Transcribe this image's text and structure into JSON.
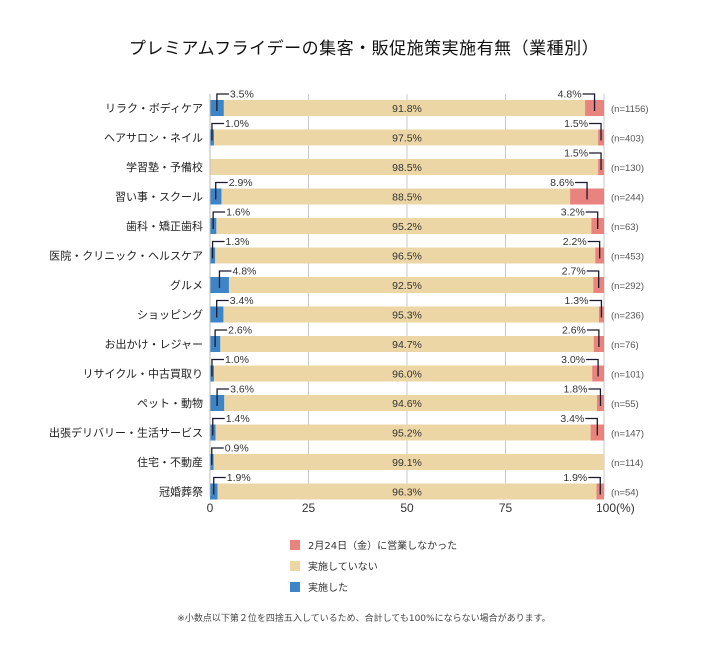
{
  "title": "プレミアムフライデーの集客・販促施策実施有無（業種別）",
  "chart_data": {
    "type": "bar",
    "orientation": "horizontal",
    "stacked": true,
    "title": "プレミアムフライデーの集客・販促施策実施有無（業種別）",
    "xlabel": "",
    "ylabel": "",
    "xlim": [
      0,
      100
    ],
    "x_ticks": [
      "0",
      "25",
      "50",
      "75",
      "100(%)"
    ],
    "x_tick_values": [
      0,
      25,
      50,
      75,
      100
    ],
    "grid": true,
    "legend_position": "bottom",
    "categories": [
      "リラク・ボディケア",
      "ヘアサロン・ネイル",
      "学習塾・予備校",
      "習い事・スクール",
      "歯科・矯正歯科",
      "医院・クリニック・ヘルスケア",
      "グルメ",
      "ショッピング",
      "お出かけ・レジャー",
      "リサイクル・中古買取り",
      "ペット・動物",
      "出張デリバリー・生活サービス",
      "住宅・不動産",
      "冠婚葬祭"
    ],
    "sample_sizes": [
      "(n=1156)",
      "(n=403)",
      "(n=130)",
      "(n=244)",
      "(n=63)",
      "(n=453)",
      "(n=292)",
      "(n=236)",
      "(n=76)",
      "(n=101)",
      "(n=55)",
      "(n=147)",
      "(n=114)",
      "(n=54)"
    ],
    "series": [
      {
        "name": "実施した",
        "color": "#3d85c6",
        "values": [
          3.5,
          1.0,
          0,
          2.9,
          1.6,
          1.3,
          4.8,
          3.4,
          2.6,
          1.0,
          3.6,
          1.4,
          0.9,
          1.9
        ],
        "labels": [
          "3.5%",
          "1.0%",
          "",
          "2.9%",
          "1.6%",
          "1.3%",
          "4.8%",
          "3.4%",
          "2.6%",
          "1.0%",
          "3.6%",
          "1.4%",
          "0.9%",
          "1.9%"
        ]
      },
      {
        "name": "実施していない",
        "color": "#ecd6a6",
        "values": [
          91.8,
          97.5,
          98.5,
          88.5,
          95.2,
          96.5,
          92.5,
          95.3,
          94.7,
          96.0,
          94.6,
          95.2,
          99.1,
          96.3
        ],
        "labels": [
          "91.8%",
          "97.5%",
          "98.5%",
          "88.5%",
          "95.2%",
          "96.5%",
          "92.5%",
          "95.3%",
          "94.7%",
          "96.0%",
          "94.6%",
          "95.2%",
          "99.1%",
          "96.3%"
        ]
      },
      {
        "name": "2月24日（金）に営業しなかった",
        "color": "#e8837d",
        "values": [
          4.8,
          1.5,
          1.5,
          8.6,
          3.2,
          2.2,
          2.7,
          1.3,
          2.6,
          3.0,
          1.8,
          3.4,
          0,
          1.9
        ],
        "labels": [
          "4.8%",
          "1.5%",
          "1.5%",
          "8.6%",
          "3.2%",
          "2.2%",
          "2.7%",
          "1.3%",
          "2.6%",
          "3.0%",
          "1.8%",
          "3.4%",
          "",
          "1.9%"
        ]
      }
    ]
  },
  "legend": [
    {
      "label": "2月24日（金）に営業しなかった",
      "color": "#e8837d"
    },
    {
      "label": "実施していない",
      "color": "#ecd6a6"
    },
    {
      "label": "実施した",
      "color": "#3d85c6"
    }
  ],
  "footnote": "※小数点以下第２位を四捨五入しているため、合計しても100%にならない場合があります。"
}
